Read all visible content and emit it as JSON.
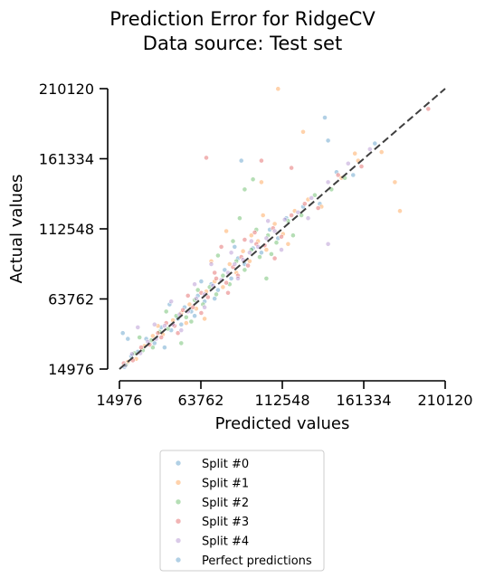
{
  "chart_data": {
    "type": "scatter",
    "title": "Prediction Error for RidgeCV",
    "subtitle": "Data source: Test set",
    "xlabel": "Predicted values",
    "ylabel": "Actual values",
    "xlim": [
      14976,
      210120
    ],
    "ylim": [
      14976,
      210120
    ],
    "x_ticks": [
      "14976",
      "63762",
      "112548",
      "161334",
      "210120"
    ],
    "y_ticks": [
      "14976",
      "63762",
      "112548",
      "161334",
      "210120"
    ],
    "grid": false,
    "legend_position": "bottom",
    "series_colors": [
      "#1f77b4",
      "#ff7f0e",
      "#2ca02c",
      "#d62728",
      "#9467bd"
    ],
    "reference_line_color": "#3f3f3f",
    "series": [
      {
        "name": "Split #0",
        "points": [
          [
            18000,
            16500
          ],
          [
            22000,
            24000
          ],
          [
            26000,
            27000
          ],
          [
            31000,
            36000
          ],
          [
            36000,
            33000
          ],
          [
            40000,
            44000
          ],
          [
            46000,
            42000
          ],
          [
            50000,
            50000
          ],
          [
            54000,
            58000
          ],
          [
            58000,
            55000
          ],
          [
            62000,
            66000
          ],
          [
            66000,
            62000
          ],
          [
            70000,
            74000
          ],
          [
            74000,
            70000
          ],
          [
            78000,
            84000
          ],
          [
            82000,
            78000
          ],
          [
            86000,
            92000
          ],
          [
            90000,
            88000
          ],
          [
            95000,
            99000
          ],
          [
            100000,
            96000
          ],
          [
            105000,
            112000
          ],
          [
            110000,
            106000
          ],
          [
            115000,
            120000
          ],
          [
            125000,
            128000
          ],
          [
            135000,
            130000
          ],
          [
            145000,
            152000
          ],
          [
            155000,
            150000
          ],
          [
            168000,
            172000
          ],
          [
            17000,
            40000
          ],
          [
            20000,
            36000
          ],
          [
            140000,
            174000
          ],
          [
            138000,
            190000
          ],
          [
            88000,
            160000
          ],
          [
            60000,
            52000
          ],
          [
            45000,
            60000
          ],
          [
            42000,
            30000
          ],
          [
            52000,
            46000
          ],
          [
            64000,
            76000
          ],
          [
            72000,
            64000
          ],
          [
            84000,
            100000
          ]
        ]
      },
      {
        "name": "Split #1",
        "points": [
          [
            20000,
            20000
          ],
          [
            25000,
            22000
          ],
          [
            30000,
            31000
          ],
          [
            35000,
            38000
          ],
          [
            41000,
            39000
          ],
          [
            47000,
            49000
          ],
          [
            52000,
            54000
          ],
          [
            57000,
            60000
          ],
          [
            61000,
            57000
          ],
          [
            67000,
            69000
          ],
          [
            72000,
            76000
          ],
          [
            77000,
            72000
          ],
          [
            81000,
            88000
          ],
          [
            85000,
            82000
          ],
          [
            89000,
            97000
          ],
          [
            93000,
            90000
          ],
          [
            98000,
            104000
          ],
          [
            103000,
            98000
          ],
          [
            108000,
            116000
          ],
          [
            113000,
            109000
          ],
          [
            120000,
            125000
          ],
          [
            128000,
            133000
          ],
          [
            136000,
            128000
          ],
          [
            148000,
            148000
          ],
          [
            158000,
            160000
          ],
          [
            172000,
            166000
          ],
          [
            180000,
            145000
          ],
          [
            183000,
            125000
          ],
          [
            110000,
            210000
          ],
          [
            156000,
            165000
          ],
          [
            125000,
            180000
          ],
          [
            100000,
            145000
          ],
          [
            79000,
            111000
          ],
          [
            94000,
            108000
          ],
          [
            70000,
            90000
          ],
          [
            66000,
            50000
          ],
          [
            38000,
            45000
          ],
          [
            55000,
            47000
          ],
          [
            101000,
            122000
          ],
          [
            116000,
            102000
          ]
        ]
      },
      {
        "name": "Split #2",
        "points": [
          [
            19000,
            18000
          ],
          [
            24000,
            26000
          ],
          [
            29000,
            28000
          ],
          [
            34000,
            35000
          ],
          [
            39000,
            41000
          ],
          [
            44000,
            43000
          ],
          [
            49000,
            52000
          ],
          [
            55000,
            51000
          ],
          [
            60000,
            63000
          ],
          [
            65000,
            60000
          ],
          [
            69000,
            72000
          ],
          [
            73000,
            67000
          ],
          [
            77000,
            80000
          ],
          [
            81000,
            74000
          ],
          [
            85000,
            90000
          ],
          [
            90000,
            84000
          ],
          [
            94000,
            98000
          ],
          [
            99000,
            93000
          ],
          [
            104000,
            108000
          ],
          [
            109000,
            103000
          ],
          [
            116000,
            118000
          ],
          [
            124000,
            122000
          ],
          [
            132000,
            136000
          ],
          [
            142000,
            140000
          ],
          [
            150000,
            148000
          ],
          [
            103000,
            78000
          ],
          [
            95000,
            147000
          ],
          [
            87000,
            120000
          ],
          [
            52000,
            33000
          ],
          [
            27000,
            37000
          ],
          [
            74000,
            94000
          ],
          [
            83000,
            104000
          ],
          [
            97000,
            112000
          ],
          [
            106000,
            95000
          ],
          [
            119000,
            108000
          ],
          [
            62000,
            70000
          ],
          [
            58000,
            48000
          ],
          [
            43000,
            55000
          ],
          [
            35000,
            30000
          ],
          [
            90000,
            140000
          ]
        ]
      },
      {
        "name": "Split #3",
        "points": [
          [
            17500,
            19000
          ],
          [
            23000,
            21000
          ],
          [
            28000,
            30000
          ],
          [
            33000,
            32000
          ],
          [
            38000,
            40000
          ],
          [
            43000,
            47000
          ],
          [
            48000,
            45000
          ],
          [
            53000,
            56000
          ],
          [
            59000,
            58000
          ],
          [
            64000,
            68000
          ],
          [
            68000,
            65000
          ],
          [
            73000,
            78000
          ],
          [
            79000,
            75000
          ],
          [
            83000,
            86000
          ],
          [
            88000,
            93000
          ],
          [
            92000,
            87000
          ],
          [
            97000,
            102000
          ],
          [
            102000,
            101000
          ],
          [
            107000,
            113000
          ],
          [
            112000,
            107000
          ],
          [
            118000,
            122000
          ],
          [
            126000,
            130000
          ],
          [
            134000,
            127000
          ],
          [
            146000,
            150000
          ],
          [
            160000,
            156000
          ],
          [
            200000,
            196000
          ],
          [
            67000,
            162000
          ],
          [
            100000,
            160000
          ],
          [
            118000,
            155000
          ],
          [
            50000,
            40000
          ],
          [
            72000,
            82000
          ],
          [
            86000,
            80000
          ],
          [
            96000,
            110000
          ],
          [
            108000,
            92000
          ],
          [
            76000,
            100000
          ],
          [
            64000,
            54000
          ],
          [
            40000,
            37000
          ],
          [
            56000,
            66000
          ],
          [
            80000,
            68000
          ],
          [
            90000,
            105000
          ]
        ]
      },
      {
        "name": "Split #4",
        "points": [
          [
            18500,
            17500
          ],
          [
            22500,
            25500
          ],
          [
            27500,
            26000
          ],
          [
            32000,
            34000
          ],
          [
            37000,
            36000
          ],
          [
            42000,
            45000
          ],
          [
            47000,
            46000
          ],
          [
            51000,
            53000
          ],
          [
            56000,
            55000
          ],
          [
            61000,
            64000
          ],
          [
            66000,
            67000
          ],
          [
            71000,
            73000
          ],
          [
            76000,
            77000
          ],
          [
            80000,
            82000
          ],
          [
            84000,
            88000
          ],
          [
            89000,
            91000
          ],
          [
            93000,
            96000
          ],
          [
            98000,
            100000
          ],
          [
            103000,
            106000
          ],
          [
            108000,
            111000
          ],
          [
            114000,
            119000
          ],
          [
            122000,
            124000
          ],
          [
            130000,
            134000
          ],
          [
            140000,
            145000
          ],
          [
            152000,
            158000
          ],
          [
            165000,
            168000
          ],
          [
            140000,
            102000
          ],
          [
            128000,
            120000
          ],
          [
            46000,
            62000
          ],
          [
            26000,
            44000
          ],
          [
            70000,
            88000
          ],
          [
            82000,
            96000
          ],
          [
            94000,
            104000
          ],
          [
            104000,
            118000
          ],
          [
            60000,
            74000
          ],
          [
            66000,
            58000
          ],
          [
            52000,
            42000
          ],
          [
            86000,
            78000
          ],
          [
            112000,
            98000
          ],
          [
            36000,
            46000
          ]
        ]
      },
      {
        "name": "Perfect predictions",
        "points": []
      }
    ]
  }
}
